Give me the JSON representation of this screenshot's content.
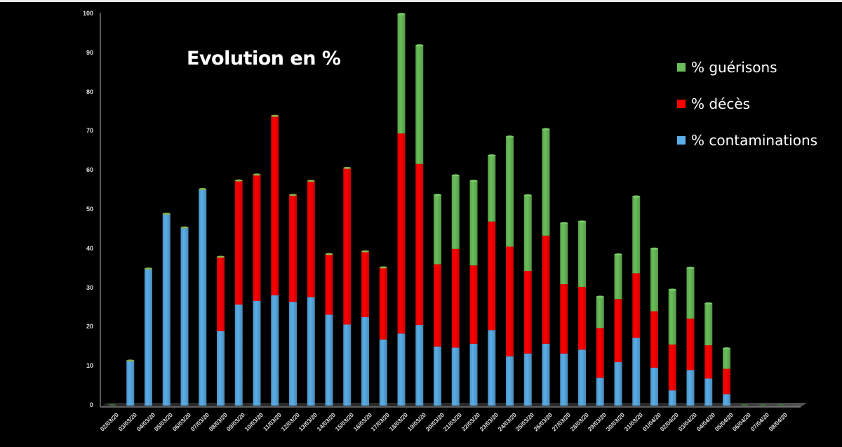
{
  "chart_data": {
    "type": "bar",
    "stacked": true,
    "title": "Evolution en %",
    "xlabel": "",
    "ylabel": "",
    "ylim": [
      0,
      100
    ],
    "yticks": [
      0,
      10,
      20,
      30,
      40,
      50,
      60,
      70,
      80,
      90,
      100
    ],
    "grid": false,
    "legend_position": "top-right",
    "categories": [
      "02/03/20",
      "03/03/20",
      "04/03/20",
      "05/03/20",
      "06/03/20",
      "07/03/20",
      "08/03/20",
      "09/03/20",
      "10/03/20",
      "11/03/20",
      "12/03/20",
      "13/03/20",
      "14/03/20",
      "15/03/20",
      "16/03/20",
      "17/03/20",
      "18/03/20",
      "19/03/20",
      "20/03/20",
      "21/03/20",
      "22/03/20",
      "23/03/20",
      "24/03/20",
      "25/03/20",
      "26/03/20",
      "27/03/20",
      "28/03/20",
      "29/03/20",
      "30/03/20",
      "31/03/20",
      "01/04/20",
      "02/04/20",
      "03/04/20",
      "04/04/20",
      "05/04/20",
      "06/04/20",
      "07/04/20",
      "08/04/20"
    ],
    "series": [
      {
        "name": "% contaminations",
        "color": "#5aaee8",
        "values": [
          0,
          11.5,
          35,
          49,
          45.5,
          55.3,
          19,
          25.8,
          26.7,
          28.2,
          26.5,
          27.7,
          23.2,
          20.7,
          22.6,
          16.9,
          18.4,
          20.6,
          15.1,
          14.8,
          15.8,
          19.3,
          12.6,
          13.3,
          15.8,
          13.3,
          14.3,
          7.1,
          11.1,
          17.3,
          9.7,
          3.9,
          9.1,
          6.9,
          2.9,
          0,
          0,
          0
        ]
      },
      {
        "name": "% décès",
        "color": "#ff0000",
        "values": [
          0,
          0,
          0,
          0,
          0,
          0,
          19,
          31.7,
          32.3,
          45.8,
          27.3,
          29.7,
          15.5,
          40,
          16.8,
          18.4,
          51.1,
          41.1,
          21,
          25.2,
          20,
          27.7,
          28,
          21.1,
          27.6,
          17.7,
          16,
          12.7,
          16.1,
          16.5,
          14.4,
          11.7,
          13.1,
          8.5,
          6.5,
          0,
          0,
          0
        ]
      },
      {
        "name": "% guérisons",
        "color": "#6abf5a",
        "values": [
          0,
          0,
          0,
          0,
          0,
          0,
          0,
          0,
          0,
          0,
          0,
          0,
          0,
          0,
          0,
          0,
          30.5,
          30.3,
          17.7,
          18.8,
          21.6,
          16.9,
          28.1,
          19.3,
          27.2,
          15.6,
          16.7,
          8,
          11.4,
          19.6,
          16,
          14,
          13,
          10.7,
          5.2,
          0,
          0,
          0
        ]
      }
    ]
  },
  "legend": {
    "items": [
      {
        "label": "% guérisons",
        "color": "#6abf5a"
      },
      {
        "label": "% décès",
        "color": "#ff0000"
      },
      {
        "label": "% contaminations",
        "color": "#5aaee8"
      }
    ]
  }
}
